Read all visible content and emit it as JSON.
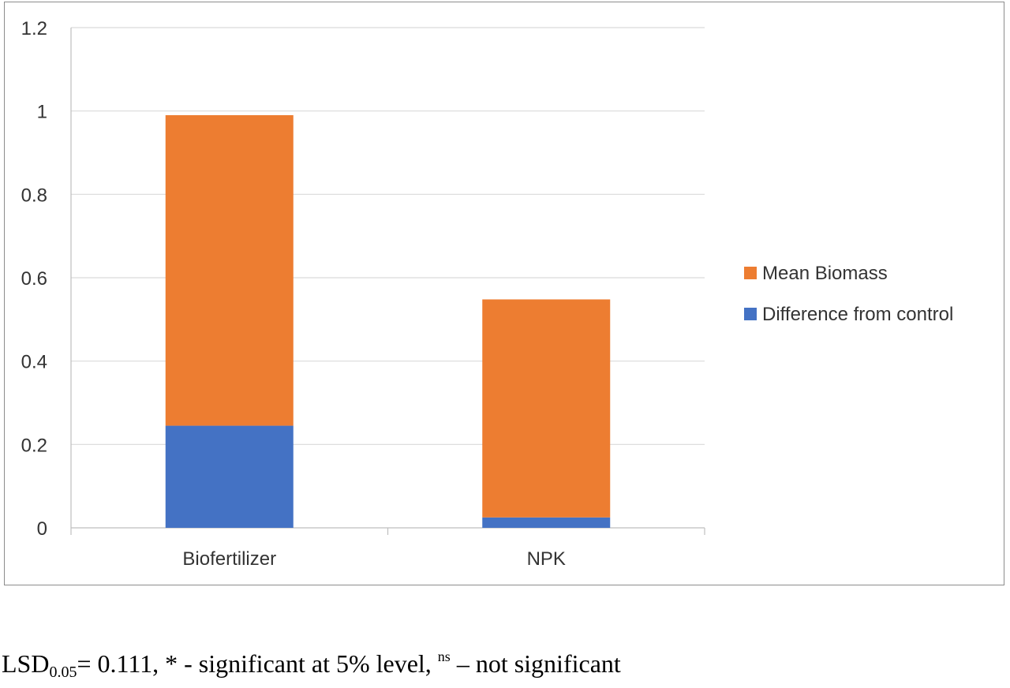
{
  "chart_data": {
    "type": "bar",
    "stacked": true,
    "categories": [
      "Biofertilizer",
      "NPK"
    ],
    "series": [
      {
        "name": "Difference from control",
        "values": [
          0.245,
          0.025
        ],
        "color": "#4472C4"
      },
      {
        "name": "Mean Biomass",
        "values": [
          0.745,
          0.523
        ],
        "color": "#ED7D31"
      }
    ],
    "ylim": [
      0,
      1.2
    ],
    "yticks": [
      "0",
      "0.2",
      "0.4",
      "0.6",
      "0.8",
      "1",
      "1.2"
    ],
    "grid": true,
    "legend_position": "right",
    "title": "",
    "xlabel": "",
    "ylabel": ""
  },
  "footnote": {
    "lsd_prefix": "LSD",
    "lsd_subscript": "0.05",
    "lsd_text": "= 0.111, * - significant at 5% level, ",
    "ns_superscript": "ns",
    "ns_text": " – not significant"
  }
}
